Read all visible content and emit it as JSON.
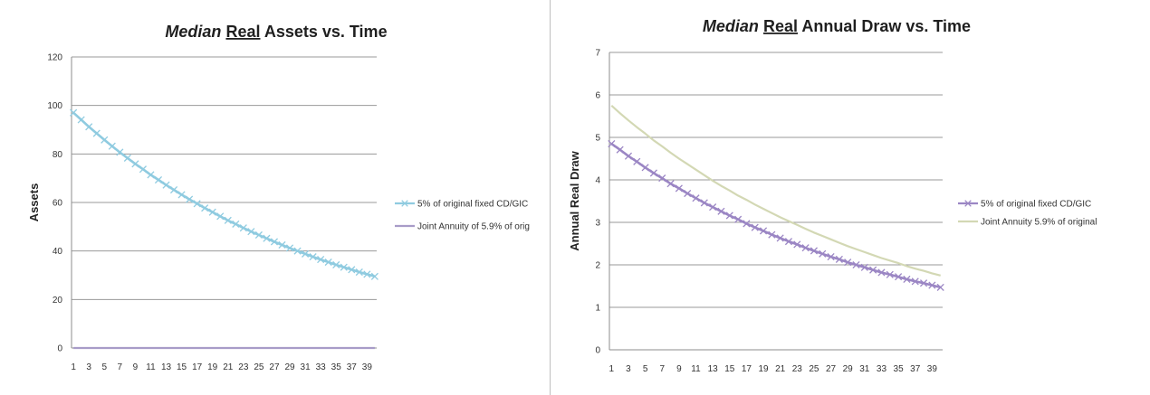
{
  "charts": {
    "left": {
      "title_italic": "Median",
      "title_underline": "Real",
      "title_rest": "Assets vs. Time"
    },
    "right": {
      "title_italic": "Median",
      "title_underline": "Real",
      "title_rest": "Annual Draw vs. Time"
    }
  },
  "chart_data": [
    {
      "type": "line",
      "title": "Median Real Assets vs. Time",
      "xlabel": "",
      "ylabel": "Assets",
      "ylim": [
        0,
        120
      ],
      "yticks": [
        0,
        20,
        40,
        60,
        80,
        100,
        120
      ],
      "xticks": [
        1,
        3,
        5,
        7,
        9,
        11,
        13,
        15,
        17,
        19,
        21,
        23,
        25,
        27,
        29,
        31,
        33,
        35,
        37,
        39
      ],
      "x": [
        1,
        2,
        3,
        4,
        5,
        6,
        7,
        8,
        9,
        10,
        11,
        12,
        13,
        14,
        15,
        16,
        17,
        18,
        19,
        20,
        21,
        22,
        23,
        24,
        25,
        26,
        27,
        28,
        29,
        30,
        31,
        32,
        33,
        34,
        35,
        36,
        37,
        38,
        39,
        40
      ],
      "grid": true,
      "legend": "right",
      "series": [
        {
          "name": "5% of original fixed CD/GIC",
          "color": "#8fcbe0",
          "marker": "x",
          "values": [
            97.0,
            94.1,
            91.2,
            88.5,
            85.8,
            83.2,
            80.7,
            78.3,
            75.9,
            73.7,
            71.4,
            69.3,
            67.2,
            65.2,
            63.2,
            61.3,
            59.5,
            57.7,
            56.0,
            54.3,
            52.6,
            51.1,
            49.5,
            48.0,
            46.6,
            45.2,
            43.8,
            42.5,
            41.2,
            40.0,
            38.8,
            37.6,
            36.5,
            35.4,
            34.3,
            33.3,
            32.3,
            31.3,
            30.4,
            29.5
          ]
        },
        {
          "name": "Joint Annuity of 5.9% of orig",
          "color": "#a89cc8",
          "marker": "none",
          "values": [
            0,
            0,
            0,
            0,
            0,
            0,
            0,
            0,
            0,
            0,
            0,
            0,
            0,
            0,
            0,
            0,
            0,
            0,
            0,
            0,
            0,
            0,
            0,
            0,
            0,
            0,
            0,
            0,
            0,
            0,
            0,
            0,
            0,
            0,
            0,
            0,
            0,
            0,
            0,
            0
          ]
        }
      ]
    },
    {
      "type": "line",
      "title": "Median Real Annual Draw vs. Time",
      "xlabel": "",
      "ylabel": "Annual Real Draw",
      "ylim": [
        0,
        7
      ],
      "yticks": [
        0,
        1,
        2,
        3,
        4,
        5,
        6,
        7
      ],
      "xticks": [
        1,
        3,
        5,
        7,
        9,
        11,
        13,
        15,
        17,
        19,
        21,
        23,
        25,
        27,
        29,
        31,
        33,
        35,
        37,
        39
      ],
      "x": [
        1,
        2,
        3,
        4,
        5,
        6,
        7,
        8,
        9,
        10,
        11,
        12,
        13,
        14,
        15,
        16,
        17,
        18,
        19,
        20,
        21,
        22,
        23,
        24,
        25,
        26,
        27,
        28,
        29,
        30,
        31,
        32,
        33,
        34,
        35,
        36,
        37,
        38,
        39,
        40
      ],
      "grid": true,
      "legend": "right",
      "series": [
        {
          "name": "5% of original fixed CD/GIC",
          "color": "#9b86c4",
          "marker": "x",
          "values": [
            4.85,
            4.71,
            4.56,
            4.43,
            4.29,
            4.16,
            4.04,
            3.91,
            3.8,
            3.68,
            3.57,
            3.46,
            3.36,
            3.26,
            3.16,
            3.07,
            2.97,
            2.88,
            2.8,
            2.71,
            2.63,
            2.55,
            2.48,
            2.4,
            2.33,
            2.26,
            2.19,
            2.13,
            2.06,
            2.0,
            1.94,
            1.88,
            1.82,
            1.77,
            1.72,
            1.66,
            1.61,
            1.57,
            1.52,
            1.47
          ]
        },
        {
          "name": "Joint Annuity 5.9% of original",
          "color": "#d3d8b4",
          "marker": "none",
          "values": [
            5.75,
            5.57,
            5.4,
            5.24,
            5.09,
            4.93,
            4.79,
            4.64,
            4.5,
            4.37,
            4.24,
            4.11,
            3.98,
            3.86,
            3.75,
            3.63,
            3.53,
            3.42,
            3.32,
            3.22,
            3.12,
            3.03,
            2.94,
            2.85,
            2.76,
            2.68,
            2.6,
            2.52,
            2.44,
            2.37,
            2.3,
            2.23,
            2.16,
            2.1,
            2.04,
            1.97,
            1.91,
            1.86,
            1.8,
            1.75
          ]
        }
      ]
    }
  ]
}
